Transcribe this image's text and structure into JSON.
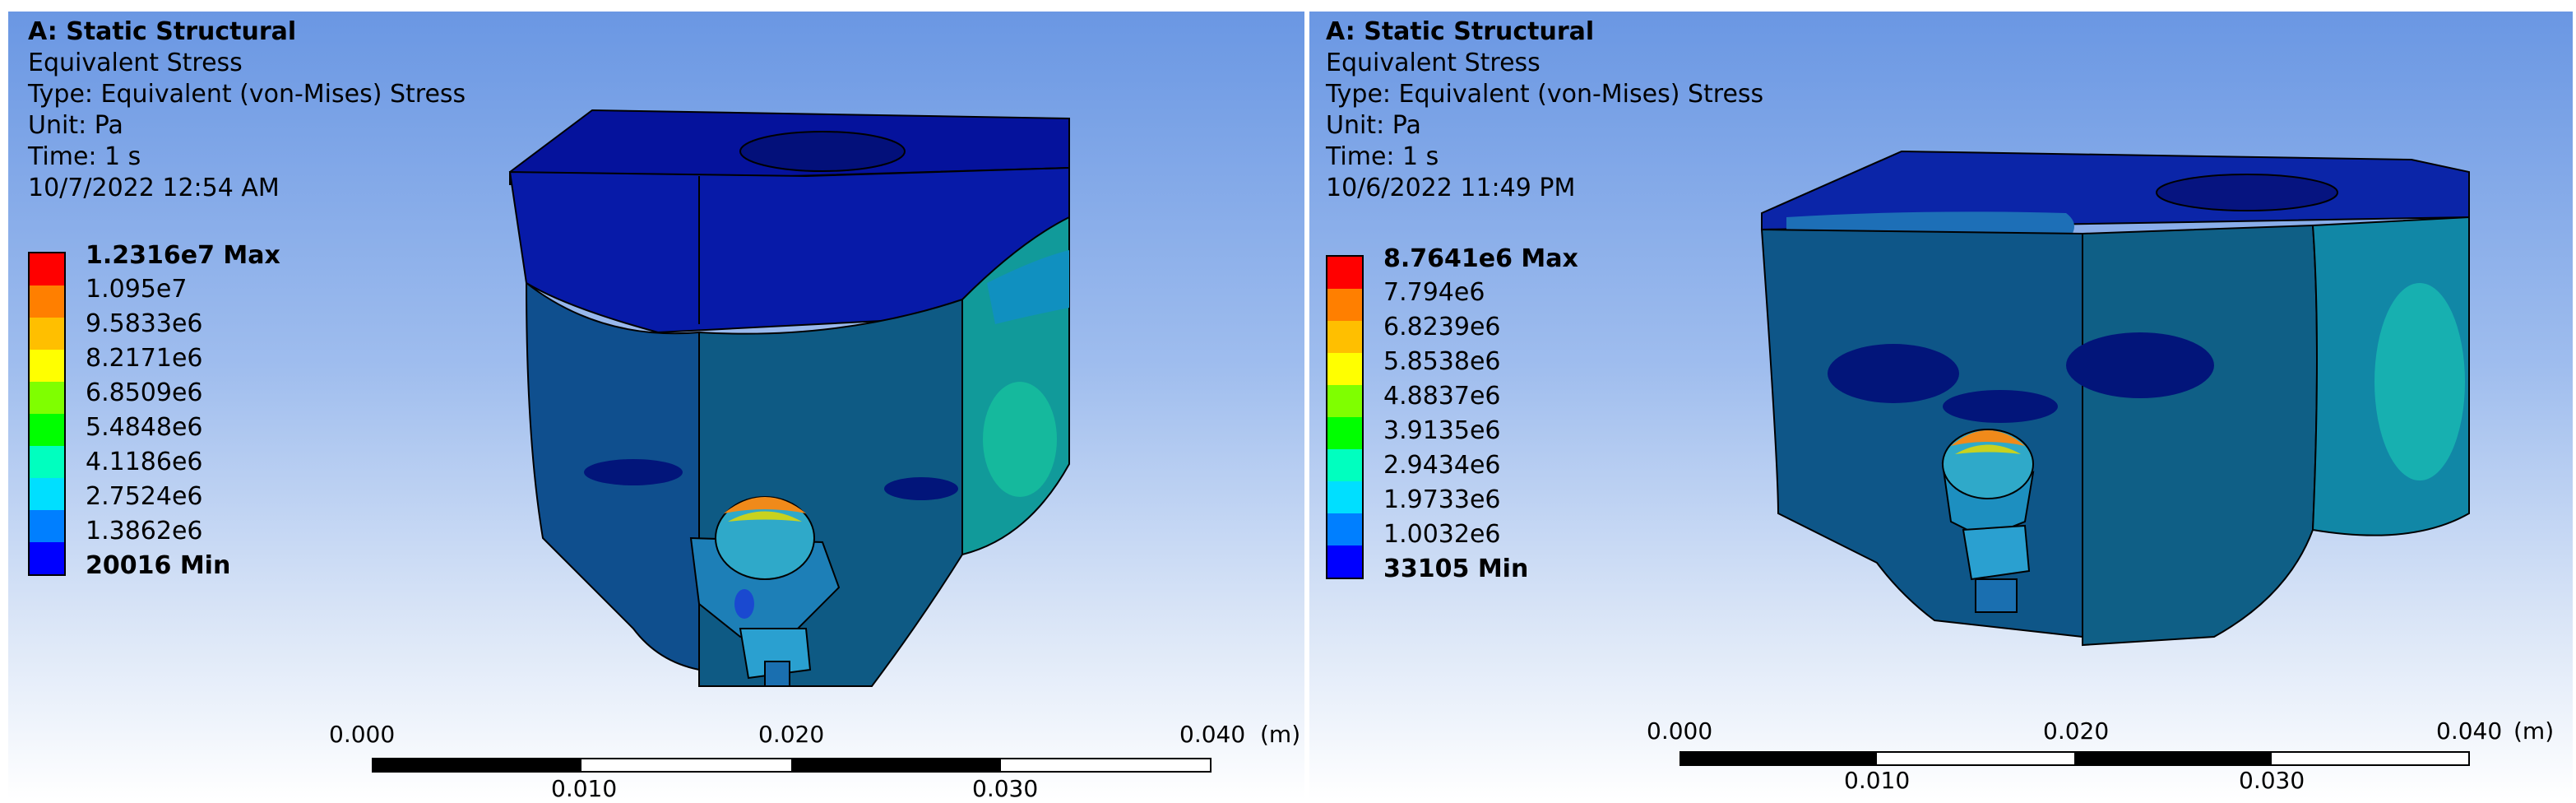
{
  "panels": [
    {
      "header": {
        "title": "A: Static Structural",
        "result": "Equivalent Stress",
        "type": "Type: Equivalent (von-Mises) Stress",
        "unit": "Unit: Pa",
        "time": "Time: 1 s",
        "timestamp": "10/7/2022 12:54 AM"
      },
      "legend": {
        "labels": [
          "1.2316e7 Max",
          "1.095e7",
          "9.5833e6",
          "8.2171e6",
          "6.8509e6",
          "5.4848e6",
          "4.1186e6",
          "2.7524e6",
          "1.3862e6",
          "20016 Min"
        ],
        "colors": [
          "#ff0000",
          "#ff7f00",
          "#ffbf00",
          "#ffff00",
          "#7fff00",
          "#00ff00",
          "#00ffbf",
          "#00dfff",
          "#007fff",
          "#0000ff"
        ]
      },
      "scale": {
        "t0": "0.000",
        "t1": "0.010",
        "t2": "0.020",
        "t3": "0.030",
        "t4": "0.040",
        "unit": "(m)"
      }
    },
    {
      "header": {
        "title": "A: Static Structural",
        "result": "Equivalent Stress",
        "type": "Type: Equivalent (von-Mises) Stress",
        "unit": "Unit: Pa",
        "time": "Time: 1 s",
        "timestamp": "10/6/2022 11:49 PM"
      },
      "legend": {
        "labels": [
          "8.7641e6 Max",
          "7.794e6",
          "6.8239e6",
          "5.8538e6",
          "4.8837e6",
          "3.9135e6",
          "2.9434e6",
          "1.9733e6",
          "1.0032e6",
          "33105 Min"
        ],
        "colors": [
          "#ff0000",
          "#ff7f00",
          "#ffbf00",
          "#ffff00",
          "#7fff00",
          "#00ff00",
          "#00ffbf",
          "#00dfff",
          "#007fff",
          "#0000ff"
        ]
      },
      "scale": {
        "t0": "0.000",
        "t1": "0.010",
        "t2": "0.020",
        "t3": "0.030",
        "t4": "0.040",
        "unit": "(m)"
      }
    }
  ]
}
